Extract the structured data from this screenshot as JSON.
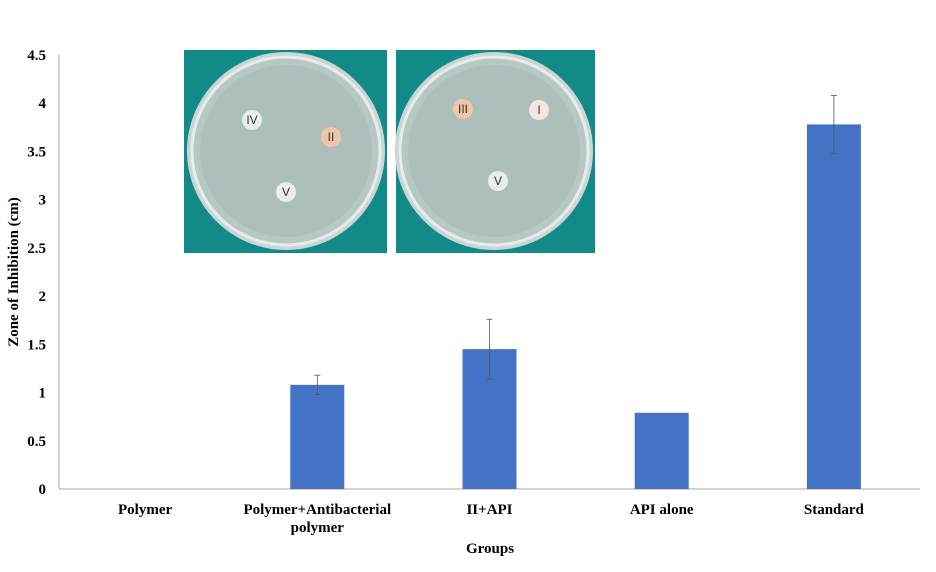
{
  "chart_data": {
    "type": "bar",
    "categories": [
      "Polymer",
      "Polymer+Antibacterial\npolymer",
      "II+API",
      "API alone",
      "Standard"
    ],
    "values": [
      0,
      1.08,
      1.45,
      0.79,
      3.78
    ],
    "error": [
      0,
      0.1,
      0.31,
      0,
      0.3
    ],
    "xlabel": "Groups",
    "ylabel": "Zone of Inhibition (cm)",
    "ylim": [
      0,
      4.5
    ],
    "yticks": [
      "0",
      "0.5",
      "1",
      "1.5",
      "2",
      "2.5",
      "3",
      "3.5",
      "4",
      "4.5"
    ],
    "bar_color": "#4472c4",
    "grid": false,
    "legend": "none"
  },
  "inset": {
    "plate_left_labels": [
      "IV",
      "II",
      "V"
    ],
    "plate_right_labels": [
      "III",
      "I",
      "V"
    ],
    "background_color": "#128a87"
  }
}
